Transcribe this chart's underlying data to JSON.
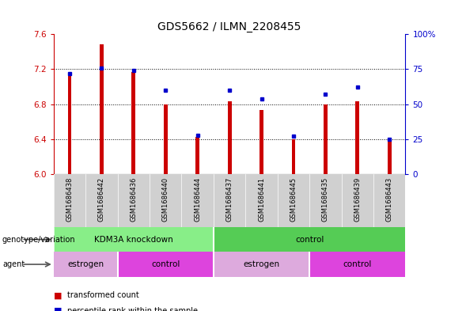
{
  "title": "GDS5662 / ILMN_2208455",
  "samples": [
    "GSM1686438",
    "GSM1686442",
    "GSM1686436",
    "GSM1686440",
    "GSM1686444",
    "GSM1686437",
    "GSM1686441",
    "GSM1686445",
    "GSM1686435",
    "GSM1686439",
    "GSM1686443"
  ],
  "red_values": [
    7.15,
    7.48,
    7.17,
    6.8,
    6.43,
    6.83,
    6.73,
    6.4,
    6.8,
    6.83,
    6.39
  ],
  "blue_percentiles": [
    72,
    76,
    74,
    60,
    28,
    60,
    54,
    27,
    57,
    62,
    25
  ],
  "ymin": 6.0,
  "ymax": 7.6,
  "yticks": [
    6.0,
    6.4,
    6.8,
    7.2,
    7.6
  ],
  "right_yticks": [
    0,
    25,
    50,
    75,
    100
  ],
  "right_ylabels": [
    "0",
    "25",
    "50",
    "75",
    "100%"
  ],
  "bar_color": "#cc0000",
  "dot_color": "#0000cc",
  "background_color": "#ffffff",
  "genotype_groups": [
    {
      "label": "KDM3A knockdown",
      "start": 0,
      "end": 4,
      "color": "#88ee88"
    },
    {
      "label": "control",
      "start": 5,
      "end": 10,
      "color": "#55cc55"
    }
  ],
  "agent_groups": [
    {
      "label": "estrogen",
      "start": 0,
      "end": 1,
      "color": "#ddaadd"
    },
    {
      "label": "control",
      "start": 2,
      "end": 4,
      "color": "#dd44dd"
    },
    {
      "label": "estrogen",
      "start": 5,
      "end": 7,
      "color": "#ddaadd"
    },
    {
      "label": "control",
      "start": 8,
      "end": 10,
      "color": "#dd44dd"
    }
  ],
  "legend_red": "transformed count",
  "legend_blue": "percentile rank within the sample",
  "title_fontsize": 10,
  "tick_fontsize": 7.5
}
